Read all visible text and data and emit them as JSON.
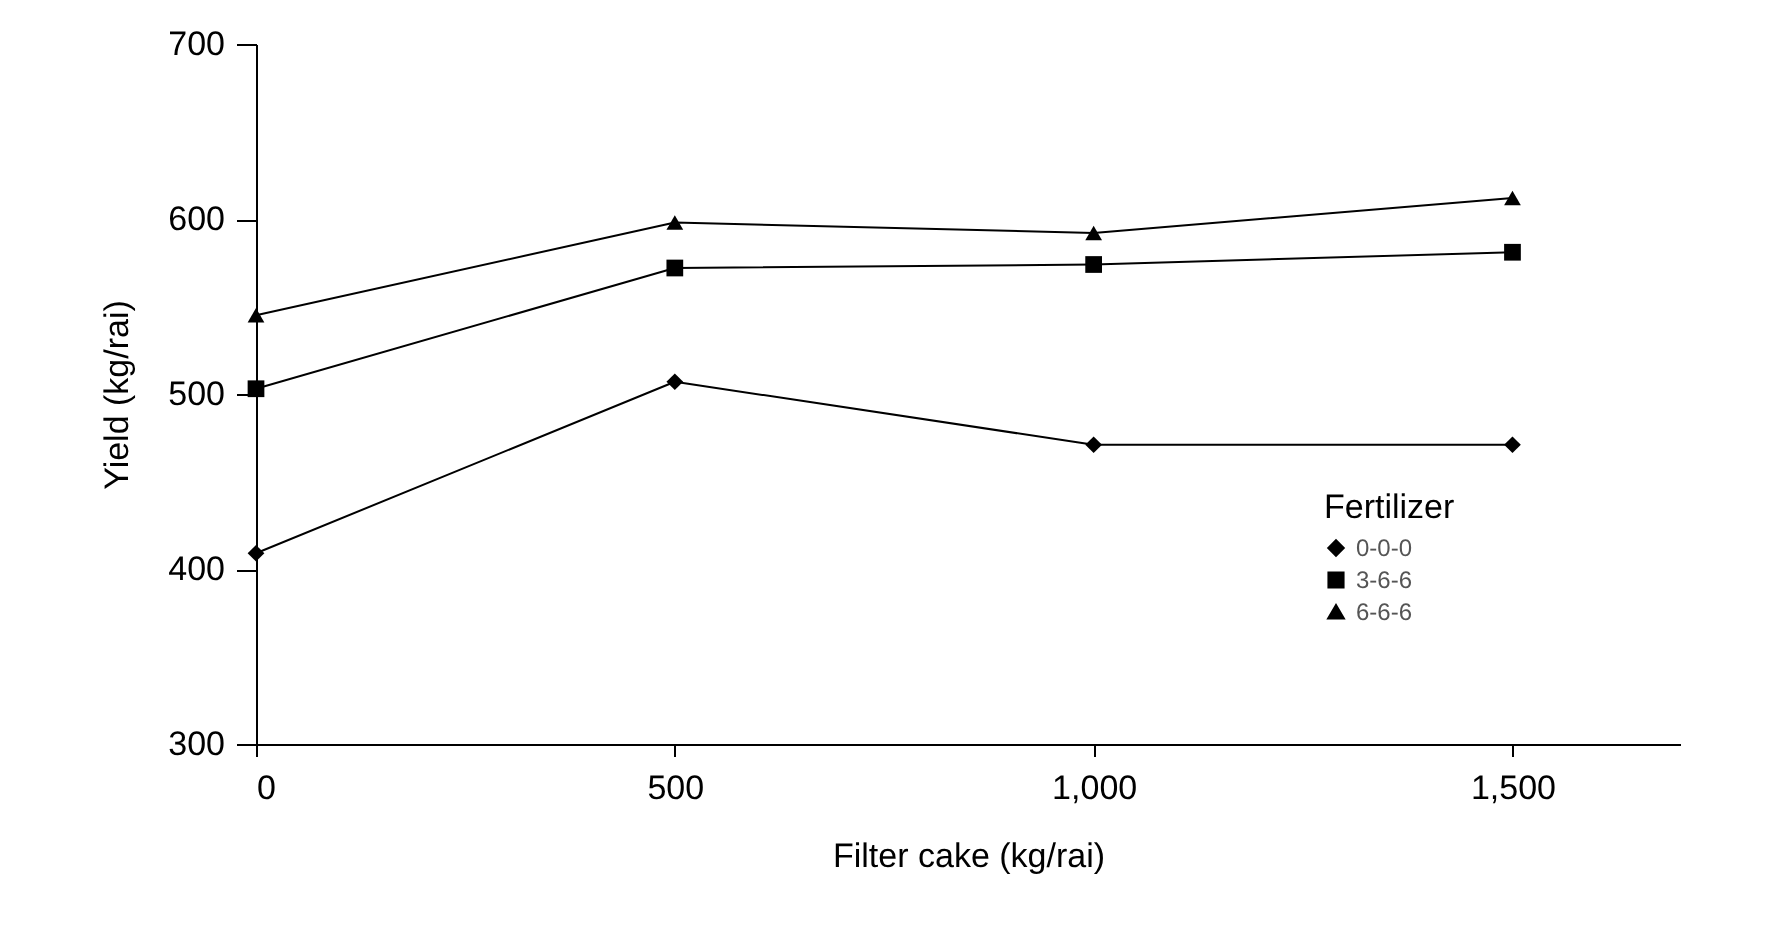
{
  "chart_data": {
    "type": "line",
    "xlabel": "Filter cake (kg/rai)",
    "ylabel": "Yield (kg/rai)",
    "legend_title": "Fertilizer",
    "legend": "bottom right",
    "grid": false,
    "x": [
      0,
      500,
      1000,
      1500
    ],
    "series": [
      {
        "name": "0-0-0",
        "color": "#000000",
        "marker": "diamond",
        "values": [
          409,
          507,
          471,
          471
        ]
      },
      {
        "name": "3-6-6",
        "color": "#000000",
        "marker": "square",
        "values": [
          503,
          572,
          574,
          581
        ]
      },
      {
        "name": "6-6-6",
        "color": "#000000",
        "marker": "triangle",
        "values": [
          545,
          598,
          592,
          612
        ]
      }
    ],
    "xlim": [
      0,
      1700
    ],
    "xticks": [
      0,
      500,
      {
        "value": 1000,
        "label": "1,000"
      },
      {
        "value": 1500,
        "label": "1,500"
      }
    ],
    "ylim": [
      300,
      700
    ],
    "yticks": [
      300,
      400,
      500,
      600,
      700
    ]
  }
}
